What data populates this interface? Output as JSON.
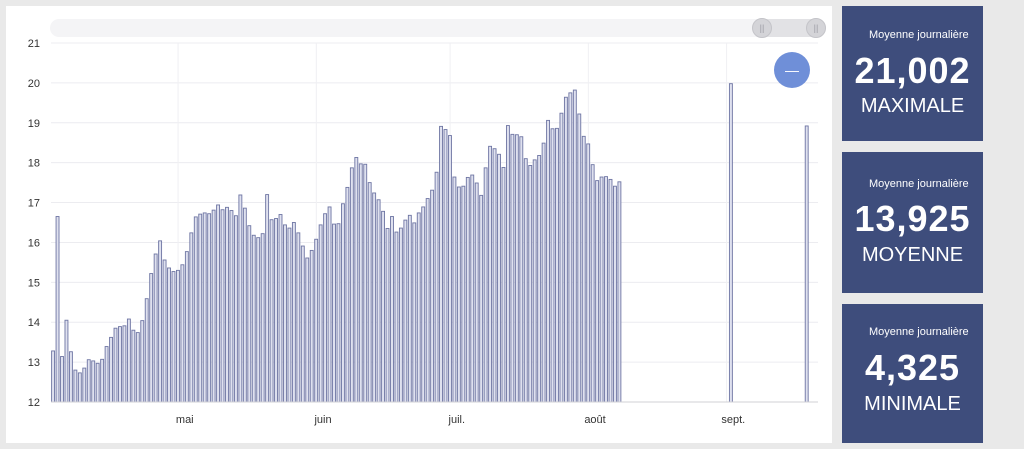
{
  "chart_data": {
    "type": "bar",
    "ylim": [
      12,
      21
    ],
    "y_ticks": [
      12,
      13,
      14,
      15,
      16,
      17,
      18,
      19,
      20,
      21
    ],
    "x_tick_labels": [
      {
        "label": "mai",
        "index": 30
      },
      {
        "label": "juin",
        "index": 61
      },
      {
        "label": "juil.",
        "index": 91
      },
      {
        "label": "août",
        "index": 122
      },
      {
        "label": "sept.",
        "index": 153
      }
    ],
    "total_days": 172,
    "grid": true,
    "values": [
      13.28,
      16.65,
      13.14,
      14.05,
      13.26,
      12.8,
      12.73,
      12.85,
      13.06,
      13.03,
      12.97,
      13.07,
      13.39,
      13.62,
      13.85,
      13.89,
      13.91,
      14.08,
      13.8,
      13.74,
      14.04,
      14.59,
      15.22,
      15.71,
      16.04,
      15.56,
      15.36,
      15.27,
      15.3,
      15.44,
      15.77,
      16.24,
      16.64,
      16.71,
      16.74,
      16.72,
      16.81,
      16.94,
      16.82,
      16.88,
      16.8,
      16.67,
      17.19,
      16.86,
      16.42,
      16.18,
      16.12,
      16.22,
      17.2,
      16.57,
      16.6,
      16.7,
      16.44,
      16.36,
      16.5,
      16.24,
      15.91,
      15.61,
      15.8,
      16.08,
      16.44,
      16.72,
      16.89,
      16.46,
      16.47,
      16.97,
      17.38,
      17.87,
      18.13,
      17.97,
      17.96,
      17.5,
      17.24,
      17.07,
      16.78,
      16.35,
      16.65,
      16.26,
      16.36,
      16.56,
      16.68,
      16.49,
      16.74,
      16.89,
      17.1,
      17.31,
      17.76,
      18.91,
      18.83,
      18.68,
      17.64,
      17.39,
      17.41,
      17.63,
      17.69,
      17.49,
      17.18,
      17.87,
      18.41,
      18.35,
      18.21,
      17.88,
      18.93,
      18.71,
      18.7,
      18.65,
      18.1,
      17.93,
      18.07,
      18.18,
      18.49,
      19.06,
      18.85,
      18.86,
      19.24,
      19.64,
      19.75,
      19.82,
      19.22,
      18.66,
      18.47,
      17.95,
      17.55,
      17.64,
      17.65,
      17.58,
      17.41,
      17.52,
      null,
      null,
      null,
      null,
      null,
      null,
      null,
      null,
      null,
      null,
      null,
      null,
      null,
      null,
      null,
      null,
      null,
      null,
      null,
      null,
      null,
      null,
      null,
      null,
      19.98,
      null,
      null,
      null,
      null,
      null,
      null,
      null,
      null,
      null,
      null,
      null,
      null,
      null,
      null,
      null,
      null,
      18.92
    ]
  },
  "stats": [
    {
      "label": "Moyenne journalière",
      "value": "21,002",
      "kind": "MAXIMALE"
    },
    {
      "label": "Moyenne journalière",
      "value": "13,925",
      "kind": "MOYENNE"
    },
    {
      "label": "Moyenne journalière",
      "value": "4,325",
      "kind": "MINIMALE"
    }
  ],
  "controls": {
    "zoom_out_symbol": "—",
    "grip_symbol": "||"
  },
  "colors": {
    "bar_fill": "#dfe1ef",
    "bar_stroke": "#6e75a3",
    "card_bg": "#3e4d7c",
    "zoom_button": "#6f8fd8"
  }
}
